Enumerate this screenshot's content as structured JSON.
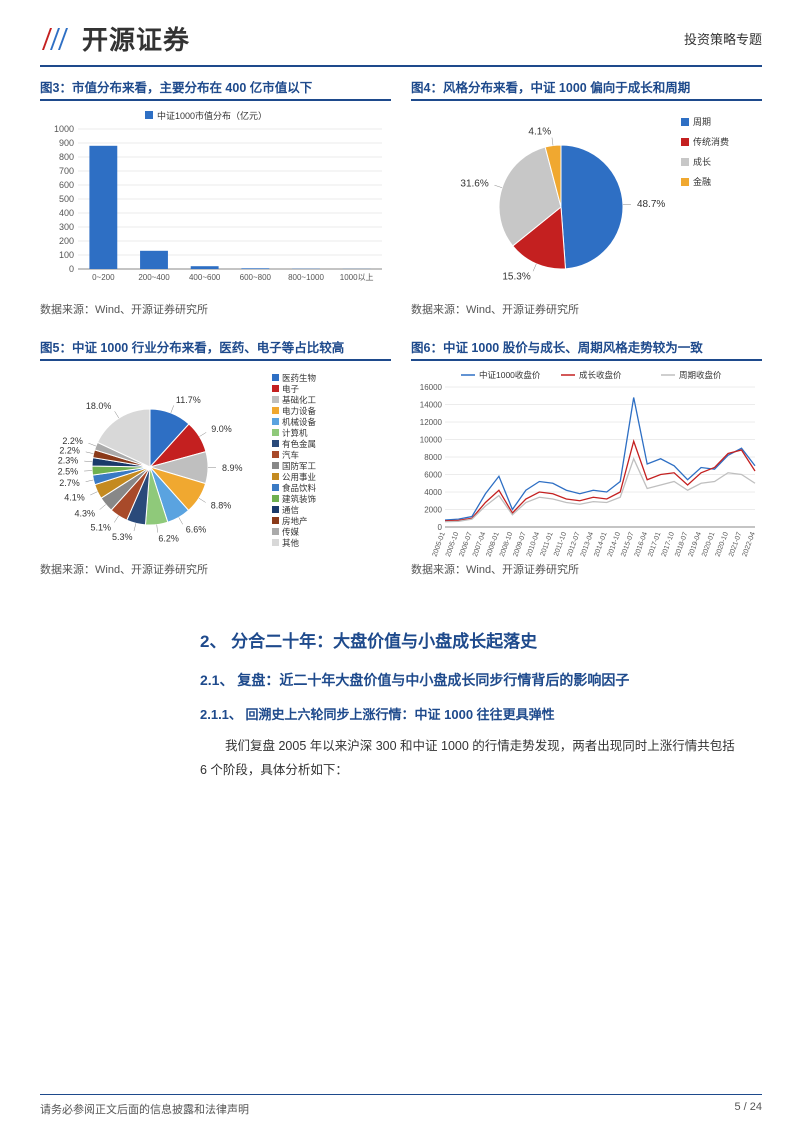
{
  "header": {
    "company_name": "开源证券",
    "doc_type": "投资策略专题"
  },
  "chart3": {
    "title": "图3：市值分布来看，主要分布在 400 亿市值以下",
    "type": "bar",
    "legend": "中证1000市值分布（亿元）",
    "categories": [
      "0~200",
      "200~400",
      "400~600",
      "600~800",
      "800~1000",
      "1000以上"
    ],
    "values": [
      880,
      130,
      20,
      5,
      2,
      1
    ],
    "bar_color": "#2e6fc4",
    "ylim": [
      0,
      1000
    ],
    "ytick_step": 100,
    "grid_color": "#d8d8d8",
    "label_fontsize": 9,
    "source": "数据来源：Wind、开源证券研究所"
  },
  "chart4": {
    "title": "图4：风格分布来看，中证 1000 偏向于成长和周期",
    "type": "pie",
    "slices": [
      {
        "label": "周期",
        "value": 48.7,
        "color": "#2e6fc4"
      },
      {
        "label": "传统消费",
        "value": 15.3,
        "color": "#c42020"
      },
      {
        "label": "成长",
        "value": 31.6,
        "color": "#c7c7c7"
      },
      {
        "label": "金融",
        "value": 4.1,
        "color": "#f0a830"
      }
    ],
    "label_fontsize": 10,
    "source": "数据来源：Wind、开源证券研究所"
  },
  "chart5": {
    "title": "图5：中证 1000 行业分布来看，医药、电子等占比较高",
    "type": "pie",
    "slices": [
      {
        "label": "医药生物",
        "value": 11.7,
        "color": "#2e6fc4"
      },
      {
        "label": "电子",
        "value": 9.0,
        "color": "#c42020"
      },
      {
        "label": "基础化工",
        "value": 8.9,
        "color": "#bfbfbf"
      },
      {
        "label": "电力设备",
        "value": 8.8,
        "color": "#f0a830"
      },
      {
        "label": "机械设备",
        "value": 6.6,
        "color": "#5aa3e0"
      },
      {
        "label": "计算机",
        "value": 6.2,
        "color": "#8fc97a"
      },
      {
        "label": "有色金属",
        "value": 5.3,
        "color": "#2a4a7a"
      },
      {
        "label": "汽车",
        "value": 5.1,
        "color": "#a84a2a"
      },
      {
        "label": "国防军工",
        "value": 4.3,
        "color": "#888888"
      },
      {
        "label": "公用事业",
        "value": 4.1,
        "color": "#c48a20"
      },
      {
        "label": "食品饮料",
        "value": 2.7,
        "color": "#3a7ac4"
      },
      {
        "label": "建筑装饰",
        "value": 2.5,
        "color": "#6fb050"
      },
      {
        "label": "通信",
        "value": 2.3,
        "color": "#1a3a6a"
      },
      {
        "label": "房地产",
        "value": 2.2,
        "color": "#8a3a1a"
      },
      {
        "label": "传媒",
        "value": 2.2,
        "color": "#aaaaaa"
      },
      {
        "label": "其他",
        "value": 18.0,
        "color": "#d8d8d8"
      }
    ],
    "label_fontsize": 9,
    "source": "数据来源：Wind、开源证券研究所"
  },
  "chart6": {
    "title": "图6：中证 1000 股价与成长、周期风格走势较为一致",
    "type": "line",
    "legend": [
      {
        "label": "中证1000收盘价",
        "color": "#2e6fc4"
      },
      {
        "label": "成长收盘价",
        "color": "#c42020"
      },
      {
        "label": "周期收盘价",
        "color": "#bfbfbf"
      }
    ],
    "x_labels": [
      "2005-01",
      "2005-10",
      "2006-07",
      "2007-04",
      "2008-01",
      "2008-10",
      "2009-07",
      "2010-04",
      "2011-01",
      "2011-10",
      "2012-07",
      "2013-04",
      "2014-01",
      "2014-10",
      "2015-07",
      "2016-04",
      "2017-01",
      "2017-10",
      "2018-07",
      "2019-04",
      "2020-01",
      "2020-10",
      "2021-07",
      "2022-04"
    ],
    "ylim": [
      0,
      16000
    ],
    "ytick_step": 2000,
    "grid_color": "#d8d8d8",
    "series_a": [
      800,
      900,
      1200,
      3800,
      5800,
      2000,
      4200,
      5200,
      5000,
      4200,
      3800,
      4200,
      4000,
      5200,
      14800,
      7200,
      7800,
      7000,
      5400,
      6800,
      6600,
      8200,
      9000,
      7000
    ],
    "series_b": [
      700,
      750,
      1000,
      2800,
      4200,
      1600,
      3200,
      4000,
      3800,
      3200,
      3000,
      3400,
      3200,
      4000,
      9800,
      5400,
      6000,
      6200,
      4800,
      6200,
      6800,
      8400,
      8800,
      6400
    ],
    "series_c": [
      600,
      650,
      900,
      2400,
      3600,
      1400,
      2800,
      3400,
      3200,
      2800,
      2600,
      2900,
      2800,
      3400,
      7800,
      4400,
      4800,
      5200,
      4200,
      5000,
      5200,
      6200,
      6000,
      5000
    ],
    "source": "数据来源：Wind、开源证券研究所"
  },
  "section": {
    "h2": "2、 分合二十年：大盘价值与小盘成长起落史",
    "h3": "2.1、 复盘：近二十年大盘价值与中小盘成长同步行情背后的影响因子",
    "h4": "2.1.1、 回溯史上六轮同步上涨行情：中证 1000 往往更具弹性",
    "body": "我们复盘 2005 年以来沪深 300 和中证 1000 的行情走势发现，两者出现同时上涨行情共包括 6 个阶段，具体分析如下："
  },
  "footer": {
    "disclaimer": "请务必参阅正文后面的信息披露和法律声明",
    "page": "5 / 24"
  }
}
